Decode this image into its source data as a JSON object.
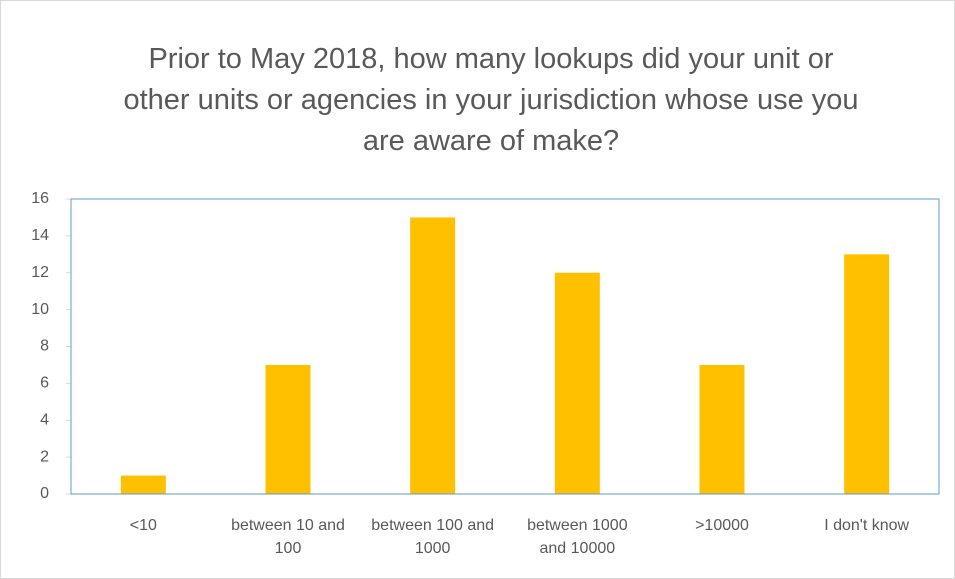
{
  "chart_data": {
    "type": "bar",
    "title": "Prior to May 2018, how many lookups did your unit or other units or agencies in your jurisdiction whose use you are aware of make?",
    "categories": [
      "<10",
      "between 10 and 100",
      "between 100 and 1000",
      "between 1000 and 10000",
      ">10000",
      "I don't know"
    ],
    "values": [
      1,
      7,
      15,
      12,
      7,
      13
    ],
    "color": "#ffc000",
    "ylim": [
      0,
      16
    ],
    "yticks": [
      0,
      2,
      4,
      6,
      8,
      10,
      12,
      14,
      16
    ],
    "grid": false
  }
}
